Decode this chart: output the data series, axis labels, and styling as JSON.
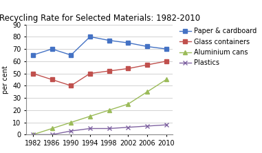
{
  "title": "Recycling Rate for Selected Materials: 1982-2010",
  "ylabel": "per cent",
  "years": [
    1982,
    1986,
    1990,
    1994,
    1998,
    2002,
    2006,
    2010
  ],
  "series": [
    {
      "label": "Paper & cardboard",
      "values": [
        65,
        70,
        65,
        80,
        77,
        75,
        72,
        70
      ],
      "color": "#4472C4",
      "marker": "s",
      "markersize": 4,
      "linestyle": "-"
    },
    {
      "label": "Glass containers",
      "values": [
        50,
        45,
        40,
        50,
        52,
        54,
        57,
        60
      ],
      "color": "#C0504D",
      "marker": "s",
      "markersize": 4,
      "linestyle": "-"
    },
    {
      "label": "Aluminium cans",
      "values": [
        0,
        5,
        10,
        15,
        20,
        25,
        35,
        45
      ],
      "color": "#9BBB59",
      "marker": "^",
      "markersize": 5,
      "linestyle": "-"
    },
    {
      "label": "Plastics",
      "values": [
        0,
        0,
        3,
        5,
        5,
        6,
        7,
        8
      ],
      "color": "#8064A2",
      "marker": "x",
      "markersize": 4,
      "linestyle": "-"
    }
  ],
  "ylim": [
    0,
    90
  ],
  "yticks": [
    0,
    10,
    20,
    30,
    40,
    50,
    60,
    70,
    80,
    90
  ],
  "background_color": "#ffffff",
  "plot_bg_color": "#dce6f1",
  "title_fontsize": 8.5,
  "axis_fontsize": 7,
  "legend_fontsize": 7,
  "tick_fontsize": 7
}
